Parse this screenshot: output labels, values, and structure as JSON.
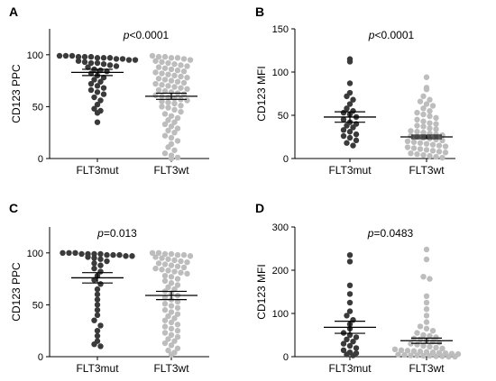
{
  "colors": {
    "mut": "#3a3a3a",
    "wt": "#bdbdbd",
    "axis": "#000000"
  },
  "chart_data": [
    {
      "panel": "A",
      "type": "scatter",
      "ylabel": "CD123 PPC",
      "ylim": [
        0,
        125
      ],
      "yticks": [
        0,
        50,
        100
      ],
      "categories": [
        "FLT3mut",
        "FLT3wt"
      ],
      "annotation": "<0.0001",
      "series": [
        {
          "name": "FLT3mut",
          "mean": 83,
          "sem": 3,
          "values": [
            99,
            99,
            99,
            98,
            98,
            98,
            97,
            97,
            97,
            96,
            96,
            95,
            95,
            94,
            93,
            92,
            92,
            91,
            90,
            89,
            88,
            86,
            85,
            84,
            82,
            80,
            78,
            76,
            74,
            72,
            70,
            68,
            66,
            64,
            62,
            59,
            56,
            52,
            48,
            46,
            44,
            35
          ]
        },
        {
          "name": "FLT3wt",
          "mean": 60,
          "sem": 3,
          "values": [
            99,
            98,
            98,
            97,
            97,
            96,
            95,
            94,
            93,
            92,
            91,
            90,
            89,
            88,
            87,
            86,
            85,
            84,
            83,
            82,
            81,
            80,
            79,
            78,
            77,
            76,
            75,
            74,
            73,
            72,
            71,
            70,
            69,
            68,
            67,
            66,
            65,
            64,
            63,
            62,
            61,
            60,
            59,
            58,
            57,
            56,
            55,
            54,
            53,
            51,
            50,
            49,
            47,
            45,
            43,
            41,
            39,
            37,
            35,
            33,
            31,
            29,
            27,
            25,
            22,
            20,
            17,
            14,
            11,
            8,
            5,
            3,
            1,
            0
          ]
        }
      ]
    },
    {
      "panel": "B",
      "type": "scatter",
      "ylabel": "CD123 MFI",
      "ylim": [
        0,
        150
      ],
      "yticks": [
        0,
        50,
        100,
        150
      ],
      "categories": [
        "FLT3mut",
        "FLT3wt"
      ],
      "annotation": "<0.0001",
      "series": [
        {
          "name": "FLT3mut",
          "mean": 48,
          "sem": 6,
          "values": [
            115,
            112,
            87,
            76,
            72,
            68,
            63,
            58,
            55,
            53,
            51,
            48,
            45,
            42,
            40,
            38,
            36,
            33,
            31,
            28,
            26,
            24,
            21,
            18,
            15
          ]
        },
        {
          "name": "FLT3wt",
          "mean": 25,
          "sem": 2,
          "values": [
            94,
            82,
            80,
            72,
            68,
            66,
            63,
            61,
            58,
            55,
            53,
            51,
            49,
            47,
            45,
            43,
            41,
            40,
            38,
            37,
            35,
            34,
            32,
            31,
            30,
            29,
            28,
            27,
            26,
            25,
            24,
            23,
            22,
            21,
            20,
            19,
            18,
            17,
            16,
            15,
            14,
            13,
            12,
            11,
            10,
            9,
            8,
            7,
            6,
            5,
            4,
            3,
            2,
            1
          ]
        }
      ]
    },
    {
      "panel": "C",
      "type": "scatter",
      "ylabel": "CD123 PPC",
      "ylim": [
        0,
        125
      ],
      "yticks": [
        0,
        50,
        100
      ],
      "categories": [
        "FLT3mut",
        "FLT3wt"
      ],
      "annotation": "=0.013",
      "series": [
        {
          "name": "FLT3mut",
          "mean": 76,
          "sem": 5,
          "values": [
            100,
            100,
            100,
            99,
            99,
            99,
            99,
            98,
            98,
            98,
            97,
            97,
            96,
            95,
            94,
            92,
            90,
            88,
            85,
            82,
            78,
            74,
            70,
            65,
            60,
            55,
            50,
            45,
            40,
            35,
            30,
            25,
            20,
            15,
            12,
            10
          ]
        },
        {
          "name": "FLT3wt",
          "mean": 59,
          "sem": 4,
          "values": [
            100,
            100,
            99,
            99,
            98,
            98,
            97,
            96,
            95,
            94,
            93,
            92,
            91,
            90,
            89,
            88,
            87,
            86,
            85,
            84,
            83,
            82,
            81,
            80,
            78,
            77,
            75,
            73,
            71,
            69,
            67,
            65,
            63,
            61,
            59,
            57,
            55,
            53,
            51,
            49,
            47,
            45,
            43,
            41,
            39,
            37,
            35,
            33,
            31,
            29,
            27,
            25,
            23,
            21,
            19,
            17,
            15,
            13,
            11,
            8,
            6,
            4,
            2
          ]
        }
      ]
    },
    {
      "panel": "D",
      "type": "scatter",
      "ylabel": "CD123 MFI",
      "ylim": [
        0,
        300
      ],
      "yticks": [
        0,
        100,
        200,
        300
      ],
      "categories": [
        "FLT3mut",
        "FLT3wt"
      ],
      "annotation": "=0.0483",
      "series": [
        {
          "name": "FLT3mut",
          "mean": 68,
          "sem": 14,
          "values": [
            235,
            220,
            165,
            145,
            125,
            105,
            95,
            85,
            75,
            65,
            55,
            50,
            45,
            40,
            35,
            30,
            25,
            20,
            15,
            10,
            8,
            5,
            3
          ]
        },
        {
          "name": "FLT3wt",
          "mean": 37,
          "sem": 6,
          "values": [
            248,
            225,
            185,
            180,
            140,
            125,
            110,
            95,
            80,
            70,
            65,
            60,
            55,
            50,
            48,
            45,
            42,
            40,
            38,
            35,
            33,
            30,
            28,
            25,
            23,
            21,
            19,
            17,
            15,
            14,
            13,
            12,
            11,
            10,
            9,
            8,
            7,
            6,
            5,
            4,
            3,
            3,
            2,
            2,
            1,
            1,
            0,
            0
          ]
        }
      ]
    }
  ]
}
